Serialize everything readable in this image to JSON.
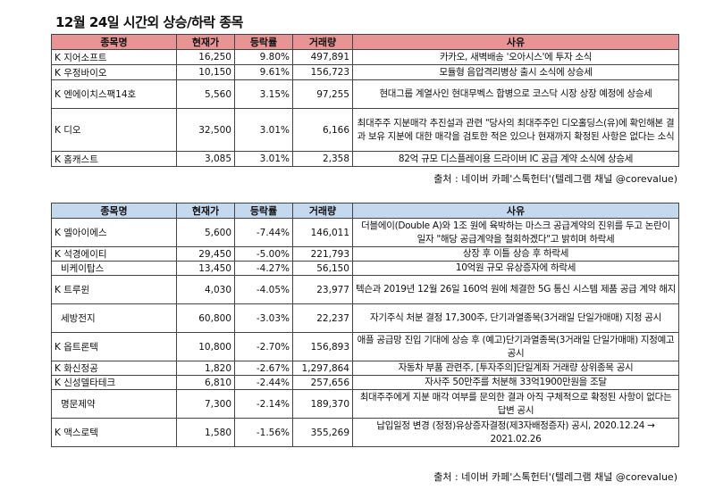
{
  "title": "12월 24일  시간외 상승/하락 종목",
  "rise_table": {
    "headers": [
      "종목명",
      "현재가",
      "등락률",
      "거래량",
      "사유"
    ],
    "rows": [
      {
        "name": "K 지어소프트",
        "price": "16,250",
        "change": "9.80%",
        "volume": "497,891",
        "reason": "카카오, 새벽배송 '오아시스'에 투자 소식"
      },
      {
        "name": "K 우정바이오",
        "price": "10,150",
        "change": "9.61%",
        "volume": "156,723",
        "reason": "모듈형 음압격리병상 출시 소식에 상승세"
      },
      {
        "name": "K 엔에이치스팩14호",
        "price": "5,560",
        "change": "3.15%",
        "volume": "97,255",
        "reason": "현대그룹 계열사인 현대무벡스 합병으로 코스닥 시장 상장 예정에 상승세"
      },
      {
        "name": "K 디오",
        "price": "32,500",
        "change": "3.01%",
        "volume": "6,166",
        "reason": "최대주주 지분매각 추진설과 관련 \"당사의 최대주주인 디오홀딩스(유)에 확인해본 결과 보유 지분에 대한 매각을 검토한 적은 있으나 현재까지 확정된 사항은 없다는 소식"
      },
      {
        "name": "K 홈캐스트",
        "price": "3,085",
        "change": "3.01%",
        "volume": "2,358",
        "reason": "82억 규모 디스플레이용 드라이버 IC 공급 계약 소식에 상승세"
      }
    ],
    "source": "출처 : 네이버 카페'스톡헌터'(텔레그램 채널 @corevalue)"
  },
  "fall_table": {
    "headers": [
      "종목명",
      "현재가",
      "등락률",
      "거래량",
      "사유"
    ],
    "rows": [
      {
        "name": "K 엘아이에스",
        "price": "5,600",
        "change": "-7.44%",
        "volume": "146,011",
        "reason": "더블에이(Double A)와 1조 원에 육박하는 마스크 공급계약의 진위를 두고 논란이 일자 \"해당 공급계약을 철회하겠다\"고 밝히며 하락세"
      },
      {
        "name": "K 석경에이티",
        "price": "29,450",
        "change": "-5.00%",
        "volume": "221,793",
        "reason": "상장 후 이틀 상승 후 하락세"
      },
      {
        "name": "비케이탑스",
        "price": "13,450",
        "change": "-4.27%",
        "volume": "56,150",
        "reason": "10억원 규모 유상증자에 하락세"
      },
      {
        "name": "K 트루윈",
        "price": "4,030",
        "change": "-4.05%",
        "volume": "23,977",
        "reason": "텍슨과 2019년 12월 26일 160억 원에 체결한 5G 통신 시스템 제품 공급 계약 해지"
      },
      {
        "name": "세방전지",
        "price": "60,800",
        "change": "-3.03%",
        "volume": "22,237",
        "reason": "자기주식 처분 결정 17,300주, 단기과열종목(3거래일 단일가매매) 지정 공시"
      },
      {
        "name": "K 옵트론텍",
        "price": "10,800",
        "change": "-2.70%",
        "volume": "156,893",
        "reason": "애플 공급망 진입 기대에 상승 후 (예고)단기과열종목(3거래일 단일가매매) 지정예고 공시"
      },
      {
        "name": "K 화신정공",
        "price": "1,820",
        "change": "-2.67%",
        "volume": "1,297,864",
        "reason": "자동차 부품 관련주, [투자주의]단일계좌 거래량 상위종목 공시"
      },
      {
        "name": "K 신성델타테크",
        "price": "6,810",
        "change": "-2.44%",
        "volume": "257,656",
        "reason": "자사주 50만주를 처분해 33억1900만원을 조달"
      },
      {
        "name": "명문제약",
        "price": "7,300",
        "change": "-2.14%",
        "volume": "189,370",
        "reason": "최대주주에게 지분 매각 여부를 문의한 결과 아직 구체적으로 확정된 사항이 없다는 답변 공시"
      },
      {
        "name": "K 맥스로텍",
        "price": "1,580",
        "change": "-1.56%",
        "volume": "355,269",
        "reason": "납입일정 변경 (정정)유상증자결정(제3자배정증자) 공시, 2020.12.24 → 2021.02.26"
      }
    ],
    "source": "출처 : 네이버 카페'스톡헌터'(텔레그램 채널 @corevalue)"
  }
}
